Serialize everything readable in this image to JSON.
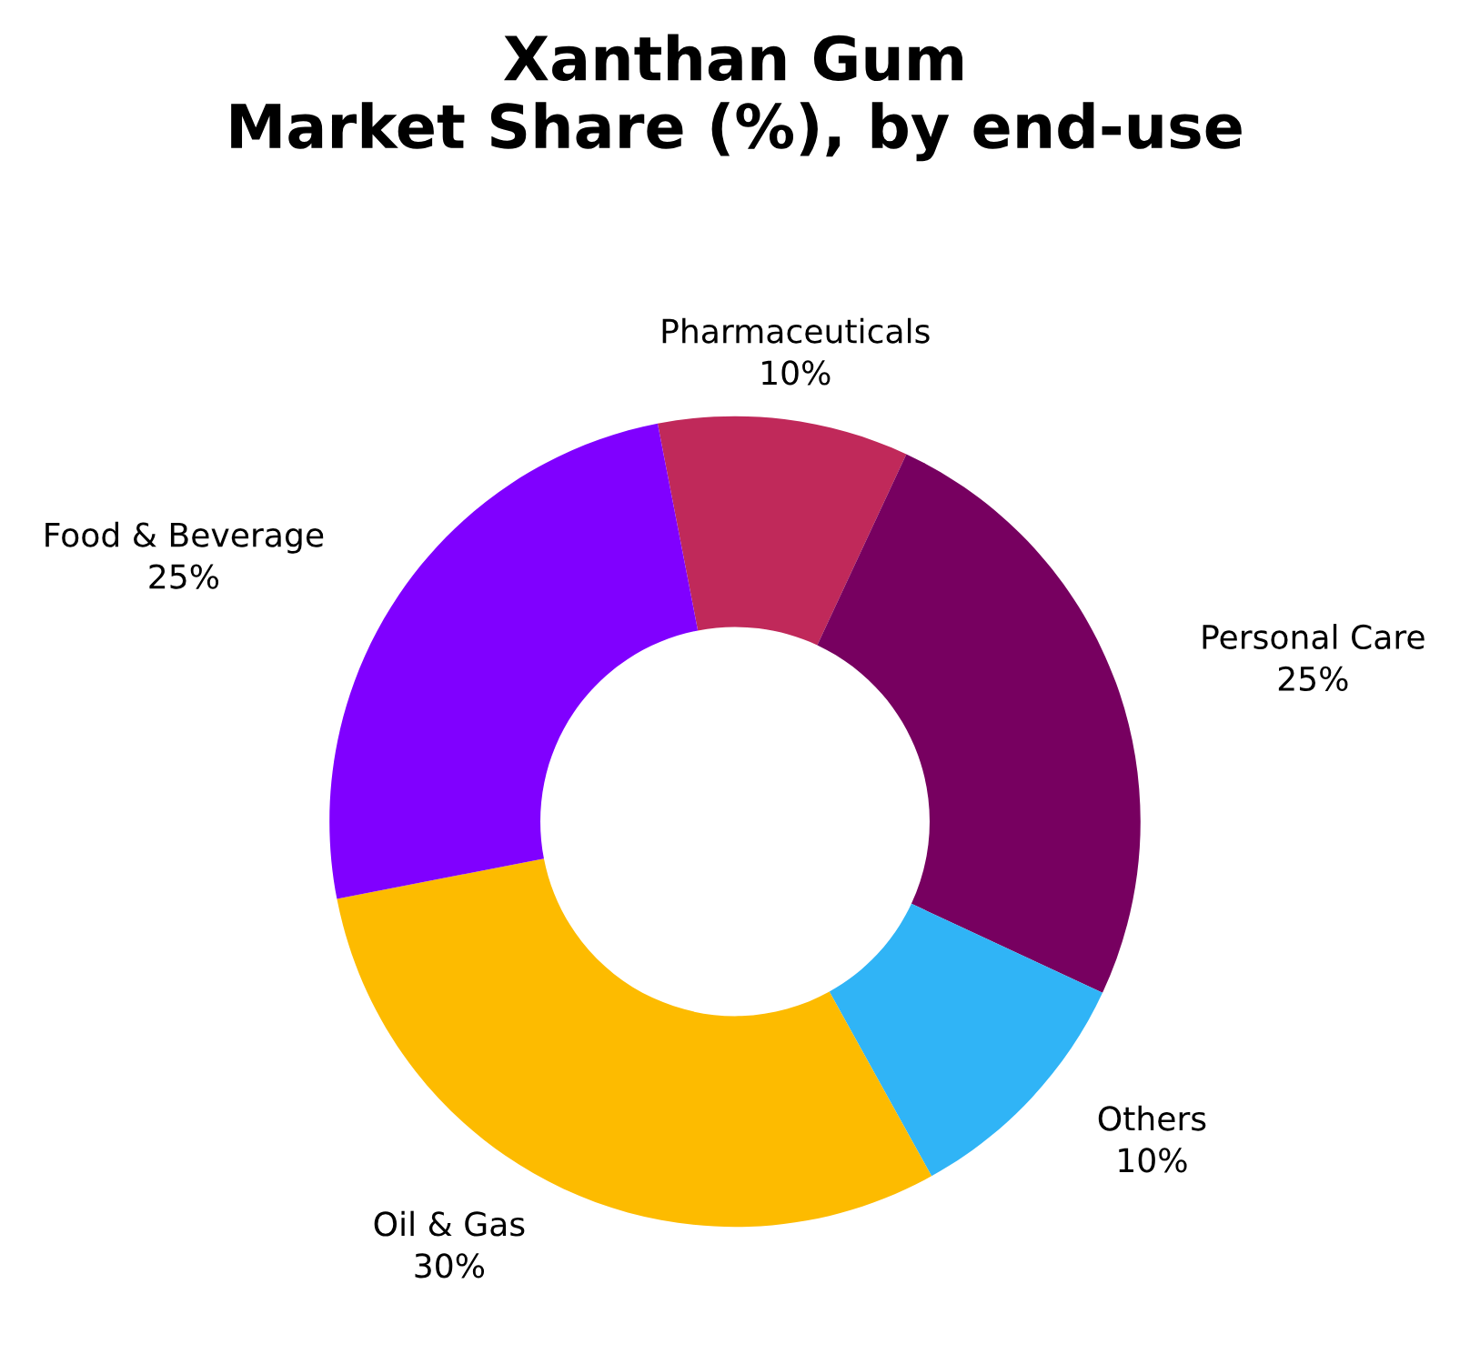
{
  "chart_data": {
    "type": "donut",
    "title": "Xanthan Gum\nMarket Share (%), by end-use",
    "categories": [
      "Pharmaceuticals",
      "Personal Care",
      "Others",
      "Oil & Gas",
      "Food & Beverage"
    ],
    "values": [
      10,
      25,
      10,
      30,
      25
    ],
    "colors": [
      "#c0295a",
      "#770060",
      "#30b4f6",
      "#fdbb00",
      "#8000ff"
    ],
    "value_labels": [
      "10%",
      "25%",
      "10%",
      "30%",
      "25%"
    ],
    "legend": false
  }
}
